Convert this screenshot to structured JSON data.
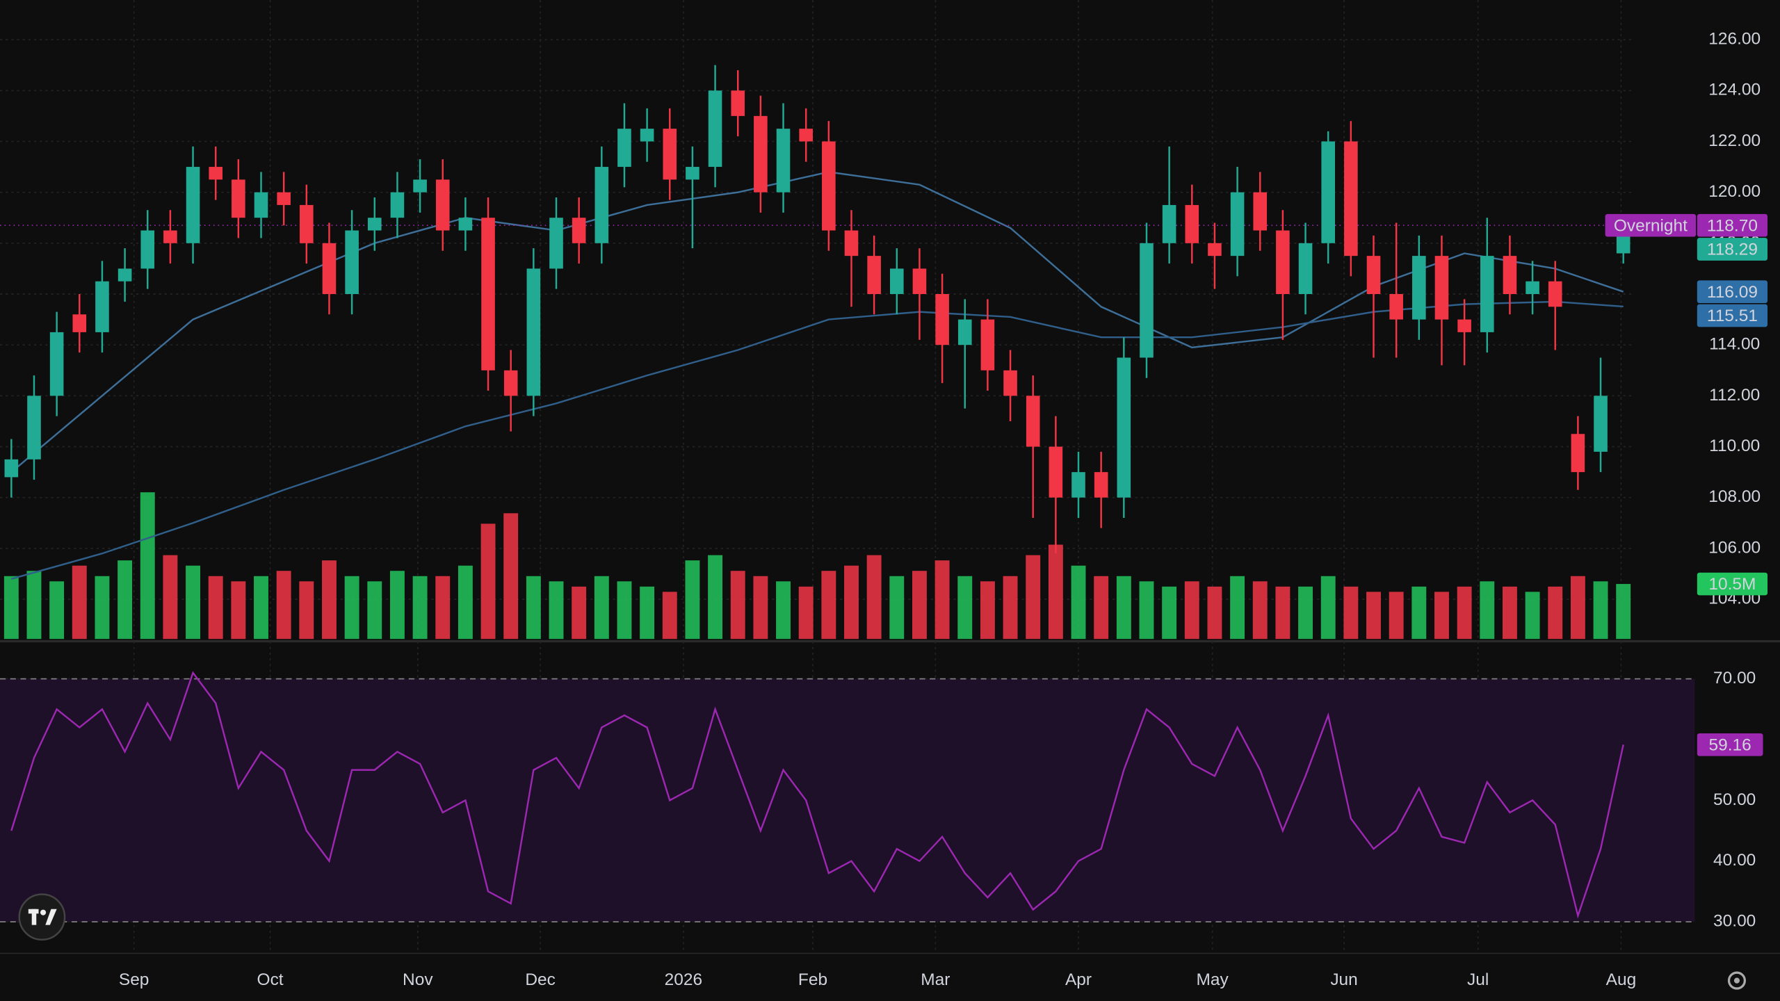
{
  "chart_data": {
    "type": "candlestick",
    "xlim": [
      -0.5,
      71.5
    ],
    "xticks": [
      {
        "value": 5.4,
        "label": "Sep"
      },
      {
        "value": 11.4,
        "label": "Oct"
      },
      {
        "value": 17.9,
        "label": "Nov"
      },
      {
        "value": 23.3,
        "label": "Dec"
      },
      {
        "value": 29.6,
        "label": "2026"
      },
      {
        "value": 35.3,
        "label": "Feb"
      },
      {
        "value": 40.7,
        "label": "Mar"
      },
      {
        "value": 47,
        "label": "Apr"
      },
      {
        "value": 52.9,
        "label": "May"
      },
      {
        "value": 58.7,
        "label": "Jun"
      },
      {
        "value": 64.6,
        "label": "Jul"
      },
      {
        "value": 70.9,
        "label": "Aug"
      }
    ],
    "ylim": [
      102.44,
      127.56
    ],
    "yticks": [
      {
        "value": 104,
        "label": "104.00"
      },
      {
        "value": 106,
        "label": "106.00"
      },
      {
        "value": 108,
        "label": "108.00"
      },
      {
        "value": 110,
        "label": "110.00"
      },
      {
        "value": 112,
        "label": "112.00"
      },
      {
        "value": 114,
        "label": "114.00"
      },
      {
        "value": 116,
        "label": "116.00"
      },
      {
        "value": 118,
        "label": "118.00"
      },
      {
        "value": 120,
        "label": "120.00"
      },
      {
        "value": 122,
        "label": "122.00"
      },
      {
        "value": 124,
        "label": "124.00"
      },
      {
        "value": 126,
        "label": "126.00"
      }
    ],
    "grid": true,
    "up_color": "#22ab94",
    "down_color": "#f23645",
    "open": [
      108.8,
      109.5,
      112,
      115.2,
      114.5,
      116.5,
      117,
      118.5,
      118,
      121,
      120.5,
      119,
      120,
      119.5,
      118,
      116,
      118.5,
      119,
      120,
      120.5,
      118.5,
      119,
      113,
      112,
      117,
      119,
      118,
      121,
      122,
      122.5,
      120.5,
      121,
      124,
      123,
      120,
      122.5,
      122,
      118.5,
      117.5,
      116,
      117,
      116,
      114,
      115,
      113,
      112,
      110,
      108,
      109,
      108,
      113.5,
      118,
      119.5,
      118,
      117.5,
      120,
      118.5,
      116,
      118,
      122,
      117.5,
      116,
      115,
      117.5,
      115,
      114.5,
      117.5,
      116,
      116.5,
      110.5,
      109.8,
      117.6
    ],
    "high": [
      110.3,
      112.8,
      115.3,
      116,
      117.3,
      117.8,
      119.3,
      119.3,
      121.8,
      121.8,
      121.3,
      120.8,
      120.8,
      120.3,
      118.8,
      119.3,
      119.8,
      120.8,
      121.3,
      121.3,
      119.8,
      119.8,
      113.8,
      117.8,
      119.8,
      119.8,
      121.8,
      123.5,
      123.3,
      123.3,
      121.8,
      125,
      124.8,
      123.8,
      123.5,
      123.3,
      122.8,
      119.3,
      118.3,
      117.8,
      117.8,
      116.8,
      115.8,
      115.8,
      113.8,
      112.8,
      111.2,
      109.8,
      109.8,
      114.3,
      118.8,
      121.8,
      120.3,
      118.8,
      121,
      120.8,
      119.3,
      118.8,
      122.4,
      122.8,
      118.3,
      118.8,
      118.3,
      118.3,
      115.8,
      119,
      118.3,
      117.3,
      117.3,
      111.2,
      113.5,
      119
    ],
    "low": [
      108,
      108.7,
      111.2,
      113.7,
      113.7,
      115.7,
      116.2,
      117.2,
      117.2,
      119.7,
      118.2,
      118.2,
      118.7,
      117.2,
      115.2,
      115.2,
      117.7,
      118.2,
      119.2,
      117.7,
      117.7,
      112.2,
      110.6,
      111.2,
      116.2,
      117.2,
      117.2,
      120.2,
      121.2,
      119.7,
      117.8,
      120.2,
      122.2,
      119.2,
      119.2,
      121.2,
      117.7,
      115.5,
      115.2,
      115.2,
      114.2,
      112.5,
      111.5,
      112.2,
      111,
      107.2,
      105.8,
      107.2,
      106.8,
      107.2,
      112.7,
      117.2,
      117.2,
      116.2,
      116.7,
      117.7,
      114.2,
      115.2,
      117.2,
      116.7,
      113.5,
      113.5,
      114.2,
      113.2,
      113.2,
      113.7,
      115.2,
      115.2,
      113.8,
      108.3,
      109,
      117.2
    ],
    "close": [
      109.5,
      112,
      114.5,
      114.5,
      116.5,
      117,
      118.5,
      118,
      121,
      120.5,
      119,
      120,
      119.5,
      118,
      116,
      118.5,
      119,
      120,
      120.5,
      118.5,
      119,
      113,
      112,
      117,
      119,
      118,
      121,
      122.5,
      122.5,
      120.5,
      121,
      124,
      123,
      120,
      122.5,
      122,
      118.5,
      117.5,
      116,
      117,
      116,
      114,
      115,
      113,
      112,
      110,
      108,
      109,
      108,
      113.5,
      118,
      119.5,
      118,
      117.5,
      120,
      118.5,
      116,
      118,
      122,
      117.5,
      116,
      115,
      117.5,
      115,
      114.5,
      117.5,
      116,
      116.5,
      115.5,
      109,
      112,
      118.29
    ],
    "volume": {
      "values": [
        12,
        13,
        11,
        14,
        12,
        15,
        28,
        16,
        14,
        12,
        11,
        12,
        13,
        11,
        15,
        12,
        11,
        13,
        12,
        12,
        14,
        22,
        24,
        12,
        11,
        10,
        12,
        11,
        10,
        9,
        15,
        16,
        13,
        12,
        11,
        10,
        13,
        14,
        16,
        12,
        13,
        15,
        12,
        11,
        12,
        16,
        18,
        14,
        12,
        12,
        11,
        10,
        11,
        10,
        12,
        11,
        10,
        10,
        12,
        10,
        9,
        9,
        10,
        9,
        10,
        11,
        10,
        9,
        10,
        12,
        11,
        10.5
      ],
      "lim": [
        0,
        65
      ],
      "up_color": "#22c55e",
      "down_color": "#f23645",
      "last_label": "10.5M"
    },
    "moving_averages": [
      {
        "x": [
          0,
          4,
          8,
          12,
          16,
          20,
          24,
          28,
          32,
          36,
          40,
          44,
          48,
          52,
          56,
          60,
          64,
          68,
          71
        ],
        "values": [
          109,
          112,
          115,
          116.5,
          118,
          119,
          118.5,
          119.5,
          120,
          120.8,
          120.3,
          118.6,
          115.5,
          113.9,
          114.3,
          116.3,
          117.6,
          117,
          116.09
        ],
        "color": "#3d6f99"
      },
      {
        "x": [
          0,
          4,
          8,
          12,
          16,
          20,
          24,
          28,
          32,
          36,
          40,
          44,
          48,
          52,
          56,
          60,
          64,
          68,
          71
        ],
        "values": [
          104.8,
          105.8,
          107,
          108.3,
          109.5,
          110.8,
          111.7,
          112.8,
          113.8,
          115,
          115.3,
          115.1,
          114.3,
          114.3,
          114.7,
          115.3,
          115.6,
          115.7,
          115.51
        ],
        "color": "#2f5f8a"
      }
    ],
    "overnight": {
      "name": "Overnight",
      "price": {
        "value": 118.7,
        "label": "118.70"
      },
      "color": "#9c27b0"
    },
    "rsi": {
      "type": "line",
      "color": "#9c27b0",
      "values": [
        45,
        57,
        65,
        62,
        65,
        58,
        66,
        60,
        71,
        66,
        52,
        58,
        55,
        45,
        40,
        55,
        55,
        58,
        56,
        48,
        50,
        35,
        33,
        55,
        57,
        52,
        62,
        64,
        62,
        50,
        52,
        65,
        55,
        45,
        55,
        50,
        38,
        40,
        35,
        42,
        40,
        44,
        38,
        34,
        38,
        32,
        35,
        40,
        42,
        55,
        65,
        62,
        56,
        54,
        62,
        55,
        45,
        54,
        64,
        47,
        42,
        45,
        52,
        44,
        43,
        53,
        48,
        50,
        46,
        31,
        42,
        59.16
      ],
      "ylim": [
        24.8,
        76.2
      ],
      "yticks": [
        {
          "value": 30,
          "label": "30.00"
        },
        {
          "value": 40,
          "label": "40.00"
        },
        {
          "value": 50,
          "label": "50.00"
        },
        {
          "value": 70,
          "label": "70.00"
        }
      ],
      "band": [
        30,
        70
      ]
    }
  }
}
